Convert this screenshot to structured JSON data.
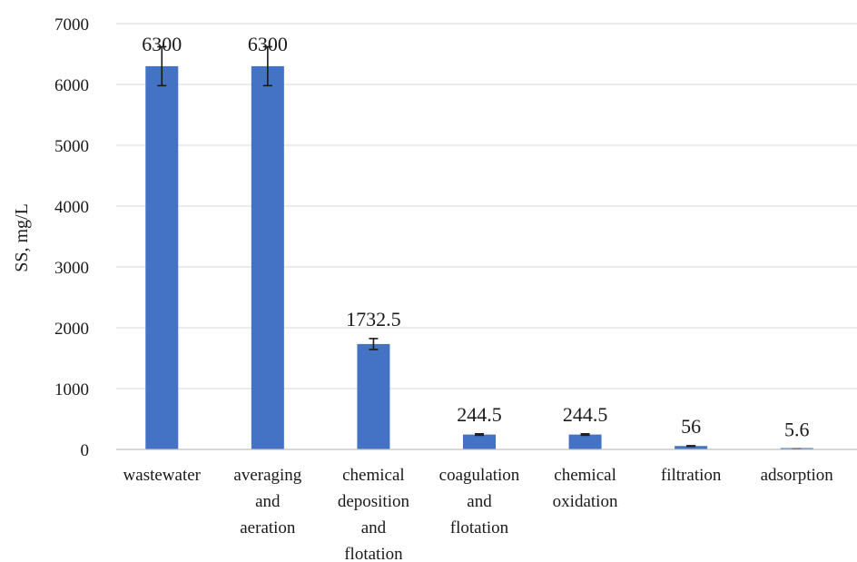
{
  "chart_data": {
    "type": "bar",
    "categories": [
      [
        "wastewater"
      ],
      [
        "averaging",
        "and",
        "aeration"
      ],
      [
        "chemical",
        "deposition",
        "and",
        "flotation"
      ],
      [
        "coagulation",
        "and",
        "flotation"
      ],
      [
        "chemical",
        "oxidation"
      ],
      [
        "filtration"
      ],
      [
        "adsorption"
      ]
    ],
    "values": [
      6300,
      6300,
      1732.5,
      244.5,
      244.5,
      56,
      5.6
    ],
    "value_labels": [
      "6300",
      "6300",
      "1732.5",
      "244.5",
      "244.5",
      "56",
      "5.6"
    ],
    "error": [
      320,
      320,
      90,
      12,
      12,
      5,
      1
    ],
    "ylabel": "SS, mg/L",
    "xlabel": "",
    "ylim": [
      0,
      7000
    ],
    "yticks": [
      0,
      1000,
      2000,
      3000,
      4000,
      5000,
      6000,
      7000
    ],
    "grid": true,
    "bar_color": "#4472c4"
  }
}
